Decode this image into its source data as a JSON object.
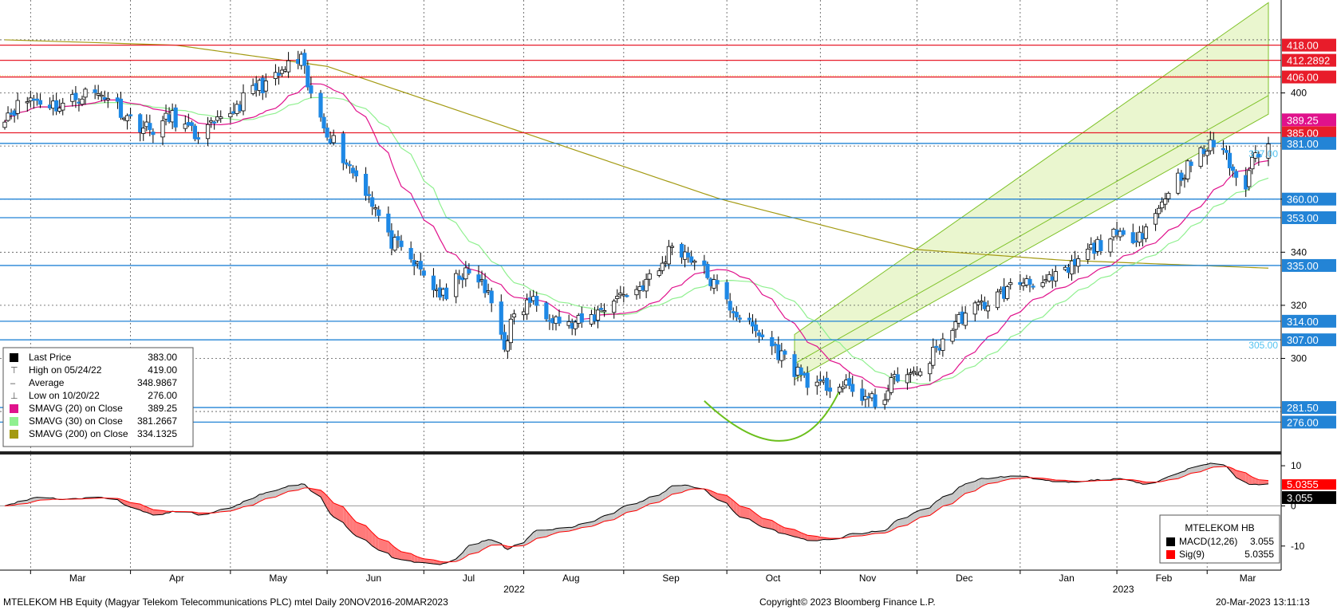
{
  "chart_data": {
    "type": "candlestick",
    "ticker": "MTELEKOM HB",
    "x_months": [
      "Mar",
      "Apr",
      "May",
      "Jun",
      "Jul",
      "Aug",
      "Sep",
      "Oct",
      "Nov",
      "Dec",
      "Jan",
      "Feb",
      "Mar"
    ],
    "x_years": [
      "2022",
      "2023"
    ],
    "price_axis": {
      "ylim": [
        265,
        435
      ],
      "ticks": [
        "300",
        "320",
        "340",
        "360",
        "400"
      ],
      "grid": true
    },
    "resistance_levels": [
      {
        "label": "418.00",
        "value": 418.0
      },
      {
        "label": "412.2892",
        "value": 412.2892
      },
      {
        "label": "406.00",
        "value": 406.0
      },
      {
        "label": "385.00",
        "value": 385.0
      }
    ],
    "support_levels": [
      {
        "label": "381.00",
        "value": 381.0
      },
      {
        "label": "360.00",
        "value": 360.0
      },
      {
        "label": "353.00",
        "value": 353.0
      },
      {
        "label": "335.00",
        "value": 335.0
      },
      {
        "label": "314.00",
        "value": 314.0
      },
      {
        "label": "307.00",
        "value": 307.0
      },
      {
        "label": "281.50",
        "value": 281.5
      },
      {
        "label": "276.00",
        "value": 276.0
      }
    ],
    "fib_labels": [
      {
        "label": "377.00",
        "value": 377.0
      },
      {
        "label": "305.00",
        "value": 305.0
      }
    ],
    "sma_labels": [
      {
        "label": "389.25",
        "value": 389.25
      }
    ],
    "price_anchors": [
      [
        "2022-02-21",
        392
      ],
      [
        "2022-03-01",
        398
      ],
      [
        "2022-03-10",
        395
      ],
      [
        "2022-03-18",
        400
      ],
      [
        "2022-03-25",
        399
      ],
      [
        "2022-03-31",
        391
      ],
      [
        "2022-04-07",
        386
      ],
      [
        "2022-04-14",
        391
      ],
      [
        "2022-04-21",
        384
      ],
      [
        "2022-04-28",
        388
      ],
      [
        "2022-05-04",
        395
      ],
      [
        "2022-05-10",
        402
      ],
      [
        "2022-05-16",
        405
      ],
      [
        "2022-05-20",
        410
      ],
      [
        "2022-05-24",
        412
      ],
      [
        "2022-05-27",
        398
      ],
      [
        "2022-06-01",
        386
      ],
      [
        "2022-06-07",
        374
      ],
      [
        "2022-06-14",
        362
      ],
      [
        "2022-06-20",
        345
      ],
      [
        "2022-06-27",
        337
      ],
      [
        "2022-07-04",
        327
      ],
      [
        "2022-07-08",
        322
      ],
      [
        "2022-07-12",
        332
      ],
      [
        "2022-07-18",
        330
      ],
      [
        "2022-07-22",
        321
      ],
      [
        "2022-07-26",
        305
      ],
      [
        "2022-07-28",
        313
      ],
      [
        "2022-08-03",
        322
      ],
      [
        "2022-08-09",
        317
      ],
      [
        "2022-08-15",
        312
      ],
      [
        "2022-08-22",
        315
      ],
      [
        "2022-08-29",
        323
      ],
      [
        "2022-09-05",
        326
      ],
      [
        "2022-09-12",
        333
      ],
      [
        "2022-09-16",
        343
      ],
      [
        "2022-09-22",
        338
      ],
      [
        "2022-09-27",
        331
      ],
      [
        "2022-10-03",
        321
      ],
      [
        "2022-10-10",
        312
      ],
      [
        "2022-10-17",
        305
      ],
      [
        "2022-10-24",
        296
      ],
      [
        "2022-10-31",
        289
      ],
      [
        "2022-11-07",
        290
      ],
      [
        "2022-11-14",
        286
      ],
      [
        "2022-11-18",
        283
      ],
      [
        "2022-11-22",
        288
      ],
      [
        "2022-11-25",
        294
      ],
      [
        "2022-11-30",
        293
      ],
      [
        "2022-12-05",
        300
      ],
      [
        "2022-12-09",
        307
      ],
      [
        "2022-12-15",
        316
      ],
      [
        "2022-12-21",
        320
      ],
      [
        "2022-12-28",
        325
      ],
      [
        "2023-01-04",
        330
      ],
      [
        "2023-01-10",
        328
      ],
      [
        "2023-01-16",
        332
      ],
      [
        "2023-01-23",
        340
      ],
      [
        "2023-01-30",
        346
      ],
      [
        "2023-02-03",
        345
      ],
      [
        "2023-02-09",
        348
      ],
      [
        "2023-02-13",
        354
      ],
      [
        "2023-02-17",
        364
      ],
      [
        "2023-02-23",
        372
      ],
      [
        "2023-02-28",
        378
      ],
      [
        "2023-03-03",
        381
      ],
      [
        "2023-03-07",
        378
      ],
      [
        "2023-03-09",
        368
      ],
      [
        "2023-03-13",
        366
      ],
      [
        "2023-03-15",
        375
      ],
      [
        "2023-03-20",
        383
      ]
    ],
    "sma200_anchors": [
      [
        "2022-02-21",
        420
      ],
      [
        "2022-04-15",
        418
      ],
      [
        "2022-06-01",
        410
      ],
      [
        "2022-08-01",
        385
      ],
      [
        "2022-10-01",
        360
      ],
      [
        "2022-12-01",
        341
      ],
      [
        "2023-01-15",
        337
      ],
      [
        "2023-03-20",
        334
      ]
    ],
    "legend": {
      "rows": [
        {
          "label": "Last Price",
          "value": "383.00",
          "marker": "box",
          "color": "#000000"
        },
        {
          "label": "High on 05/24/22",
          "value": "419.00",
          "marker": "high",
          "color": "#444444"
        },
        {
          "label": "Average",
          "value": "348.9867",
          "marker": "avg",
          "color": "#444444"
        },
        {
          "label": "Low on 10/20/22",
          "value": "276.00",
          "marker": "low",
          "color": "#444444"
        },
        {
          "label": "SMAVG (20)  on Close",
          "value": "389.25",
          "marker": "box",
          "color": "#e0128c"
        },
        {
          "label": "SMAVG (30)  on Close",
          "value": "381.2667",
          "marker": "box",
          "color": "#8ff08f"
        },
        {
          "label": "SMAVG (200)  on Close",
          "value": "334.1325",
          "marker": "box",
          "color": "#a39a12"
        }
      ]
    },
    "macd_panel": {
      "title": "MTELEKOM HB",
      "ylim": [
        -16,
        12
      ],
      "ticks": [
        "10",
        "0",
        "-10"
      ],
      "last_macd": "3.055",
      "last_signal": "5.0355",
      "legend": [
        {
          "label": "MACD(12,26)",
          "value": "3.055",
          "color": "#000000"
        },
        {
          "label": "Sig(9)",
          "value": "5.0355",
          "color": "#ff0000"
        }
      ]
    },
    "colors": {
      "up": "#000000",
      "down": "#1e88e5",
      "resistance": "#e81c2a",
      "support": "#2384d6",
      "sma20": "#e0128c",
      "sma30": "#8ff08f",
      "sma200": "#a39a12",
      "trend_channel": "#7ec228",
      "macd_diff_pos": "#c8c8c8",
      "macd_diff_neg": "#ff7a7a"
    }
  },
  "footer": {
    "left": "MTELEKOM HB Equity (Magyar Telekom Telecommunications PLC) mtel  Daily 20NOV2016-20MAR2023",
    "center": "Copyright© 2023 Bloomberg Finance L.P.",
    "right": "20-Mar-2023 13:11:13"
  }
}
